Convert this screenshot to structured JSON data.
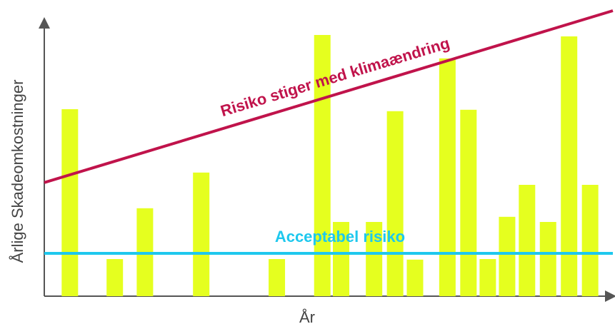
{
  "chart_data": {
    "type": "bar",
    "x_label": "År",
    "y_label": "Årlige Skadeomkostninger",
    "x": [
      4.5,
      12.4,
      17.7,
      27.6,
      40.9,
      48.9,
      52.2,
      58.0,
      61.7,
      65.2,
      70.9,
      74.6,
      78.0,
      81.4,
      84.9,
      88.6,
      92.3,
      96.0
    ],
    "values": [
      65.5,
      13,
      30.8,
      43.3,
      13,
      91.5,
      26,
      26,
      64.8,
      12.8,
      83.3,
      65.3,
      13,
      27.8,
      39,
      26,
      91,
      39
    ],
    "color": "#e5ff1f",
    "xlim": [
      0,
      100
    ],
    "ylim": [
      0,
      100
    ],
    "lines": [
      {
        "name": "Risiko stiger med klimaændring",
        "color": "#c0134b",
        "x": [
          0,
          100
        ],
        "values": [
          39.8,
          100
        ]
      },
      {
        "name": "Acceptabel risiko",
        "color": "#1ec8ee",
        "x": [
          0,
          100
        ],
        "values": [
          15,
          15
        ]
      }
    ]
  }
}
